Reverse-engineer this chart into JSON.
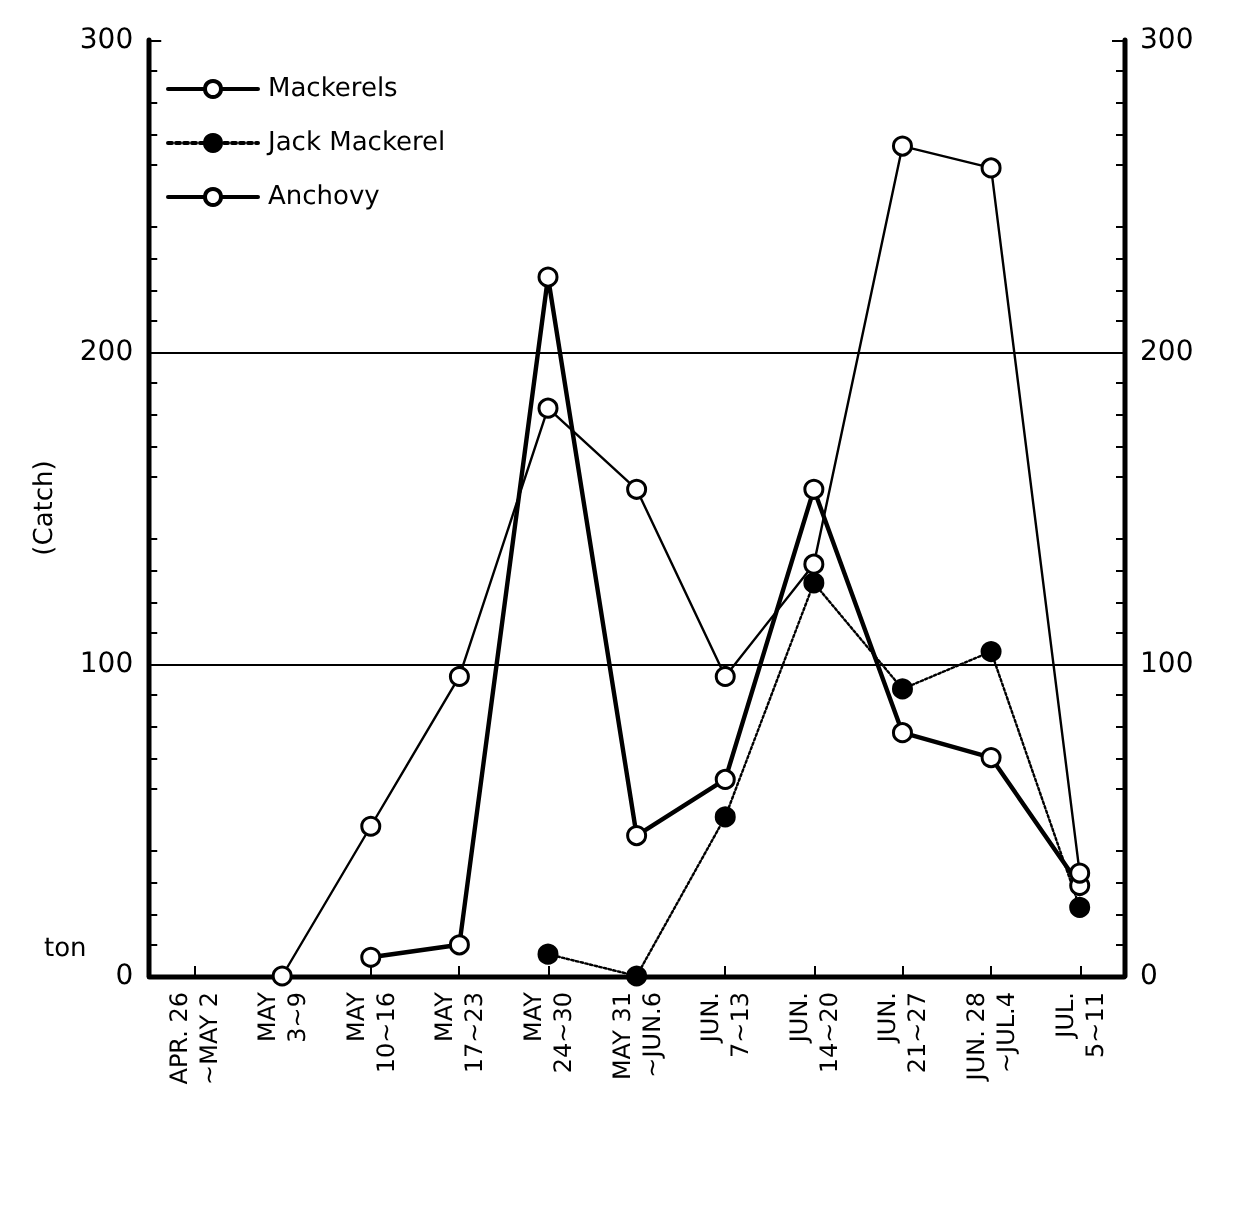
{
  "chart_data": {
    "type": "line",
    "ylabel": "(Catch)",
    "annotations": [
      "ton"
    ],
    "categories": [
      "APR. 26\n~MAY 2",
      "MAY\n3~9",
      "MAY\n10~16",
      "MAY\n17~23",
      "MAY\n24~30",
      "MAY 31\n~JUN.6",
      "JUN.\n7~13",
      "JUN.\n14~20",
      "JUN.\n21~27",
      "JUN. 28\n~JUL.4",
      "JUL.\n5~11"
    ],
    "series": [
      {
        "name": "Mackerels",
        "color": "#000000",
        "line_style": "solid",
        "values": [
          null,
          null,
          6,
          10,
          224,
          45,
          63,
          156,
          78,
          70,
          29
        ]
      },
      {
        "name": "Jack Mackerel",
        "color": "#000000",
        "line_style": "dotted",
        "values": [
          null,
          null,
          null,
          null,
          7,
          0,
          51,
          126,
          92,
          104,
          22
        ]
      },
      {
        "name": "Anchovy",
        "color": "#000000",
        "line_style": "solid",
        "values": [
          null,
          0,
          48,
          96,
          182,
          156,
          96,
          132,
          266,
          259,
          33
        ]
      }
    ],
    "ylim": [
      0,
      300
    ],
    "yticks": [
      0,
      100,
      200,
      300
    ],
    "y2lim": [
      0,
      300
    ],
    "y2ticks": [
      0,
      100,
      200,
      300
    ],
    "grid": "y",
    "legend": "top left",
    "marker": "circle"
  }
}
